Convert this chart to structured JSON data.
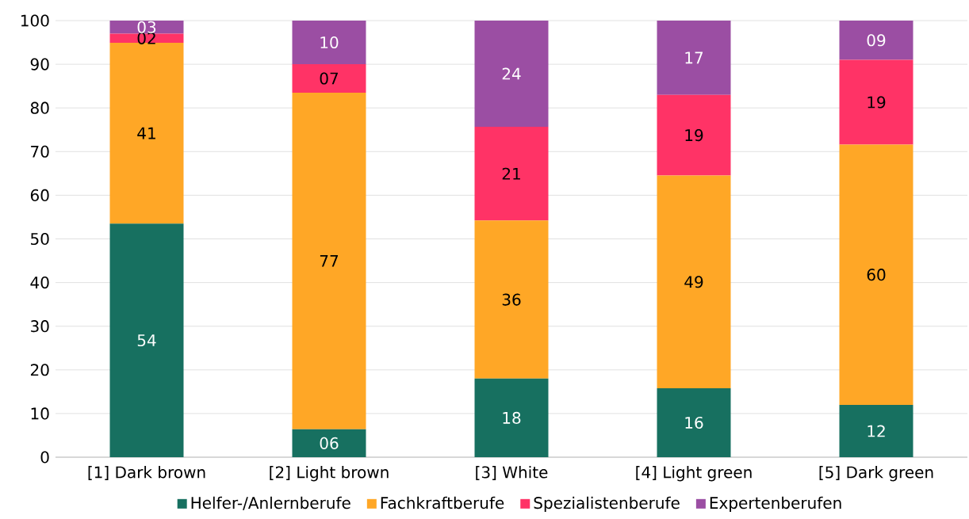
{
  "chart_data": {
    "type": "bar",
    "stacked": true,
    "categories": [
      "[1] Dark brown",
      "[2] Light brown",
      "[3] White",
      "[4] Light green",
      "[5] Dark green"
    ],
    "series": [
      {
        "name": "Helfer-/Anlernberufe",
        "color": "#177060",
        "values": [
          53.5,
          6.4,
          18,
          15.8,
          12
        ],
        "value_labels": [
          "54",
          "06",
          "18",
          "16",
          "12"
        ]
      },
      {
        "name": "Fachkraftberufe",
        "color": "#ffa726",
        "values": [
          41.4,
          77.1,
          36.2,
          48.7,
          59.6
        ],
        "value_labels": [
          "41",
          "77",
          "36",
          "49",
          "60"
        ]
      },
      {
        "name": "Spezialistenberufe",
        "color": "#ff3366",
        "values": [
          2.1,
          6.5,
          21.5,
          18.5,
          19.4
        ],
        "value_labels": [
          "02",
          "07",
          "21",
          "19",
          "19"
        ]
      },
      {
        "name": "Expertenberufen",
        "color": "#9b4ea3",
        "values": [
          3,
          10,
          24.3,
          17,
          9
        ],
        "value_labels": [
          "03",
          "10",
          "24",
          "17",
          "09"
        ]
      }
    ],
    "ylim": [
      0,
      100
    ],
    "yticks": [
      0,
      10,
      20,
      30,
      40,
      50,
      60,
      70,
      80,
      90,
      100
    ],
    "grid": "y",
    "legend": "bottom"
  }
}
